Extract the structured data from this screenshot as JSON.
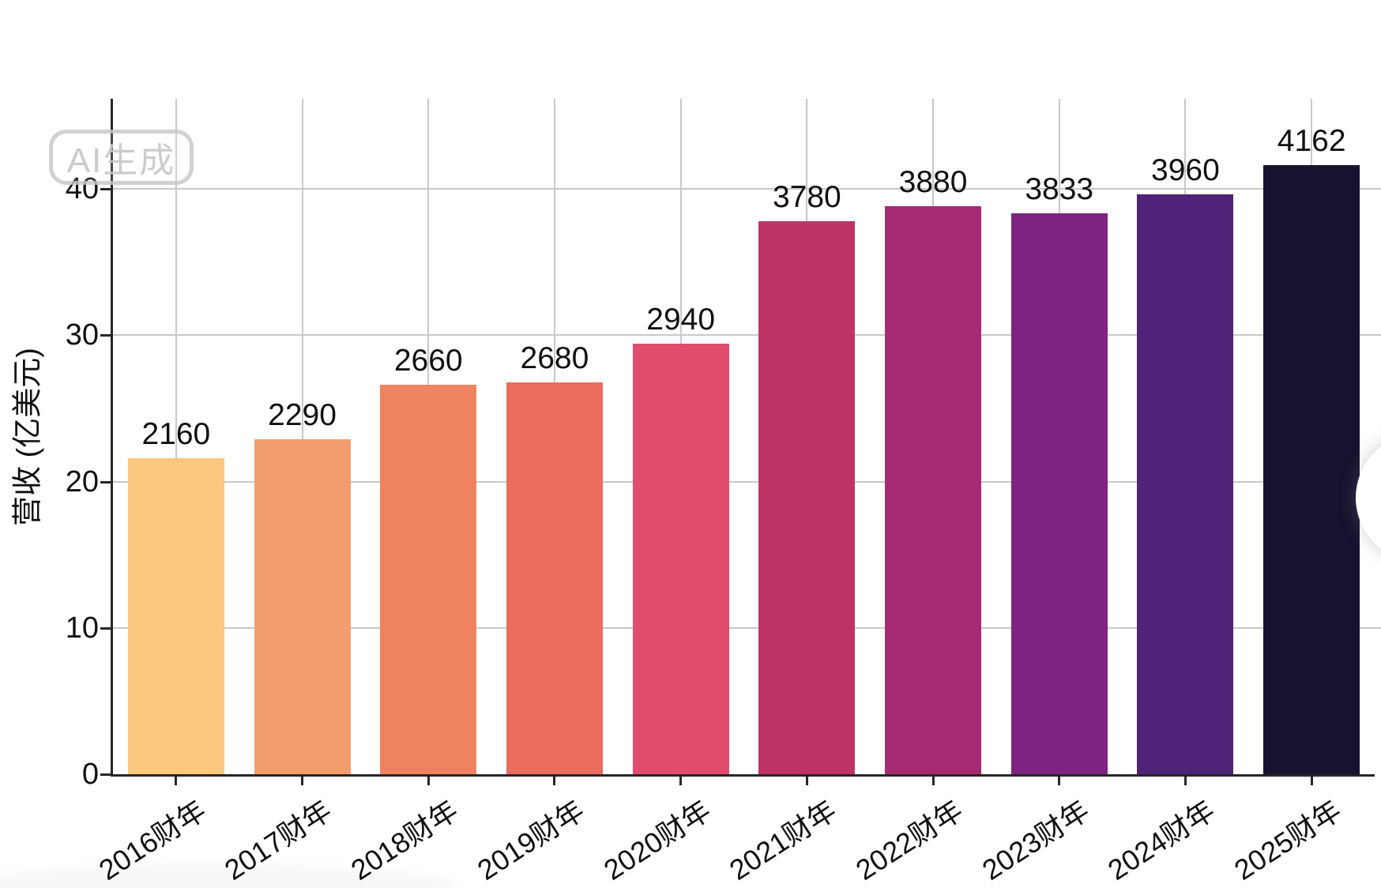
{
  "watermark": {
    "label": "AI生成"
  },
  "chart_data": {
    "type": "bar",
    "title": "",
    "categories": [
      "2016财年",
      "2017财年",
      "2018财年",
      "2019财年",
      "2020财年",
      "2021财年",
      "2022财年",
      "2023财年",
      "2024财年",
      "2025财年"
    ],
    "values": [
      2160,
      2290,
      2660,
      2680,
      2940,
      3780,
      3880,
      3833,
      3960,
      4162
    ],
    "bar_value_labels": [
      "2160",
      "2290",
      "2660",
      "2680",
      "2940",
      "3780",
      "3880",
      "3833",
      "3960",
      "4162"
    ],
    "bar_colors": [
      "#f9c77d",
      "#f49d6c",
      "#ef8260",
      "#ea6d5d",
      "#e04b6e",
      "#c03367",
      "#a52a72",
      "#7f2383",
      "#4f2478",
      "#181230"
    ],
    "xlabel": "",
    "ylabel": "营收 (亿美元)",
    "yticks": [
      0,
      10,
      20,
      30,
      40
    ],
    "ytick_labels": [
      "0",
      "10",
      "20",
      "30",
      "40"
    ],
    "ylim": [
      0,
      46.3
    ],
    "axis_unit_divisor": 100,
    "grid": true,
    "legend": null,
    "colors": {
      "axis": "#262626",
      "grid": "#c8c8c8",
      "text": "#111111",
      "background": "#ffffff",
      "watermark": "#c6c6c6"
    }
  }
}
